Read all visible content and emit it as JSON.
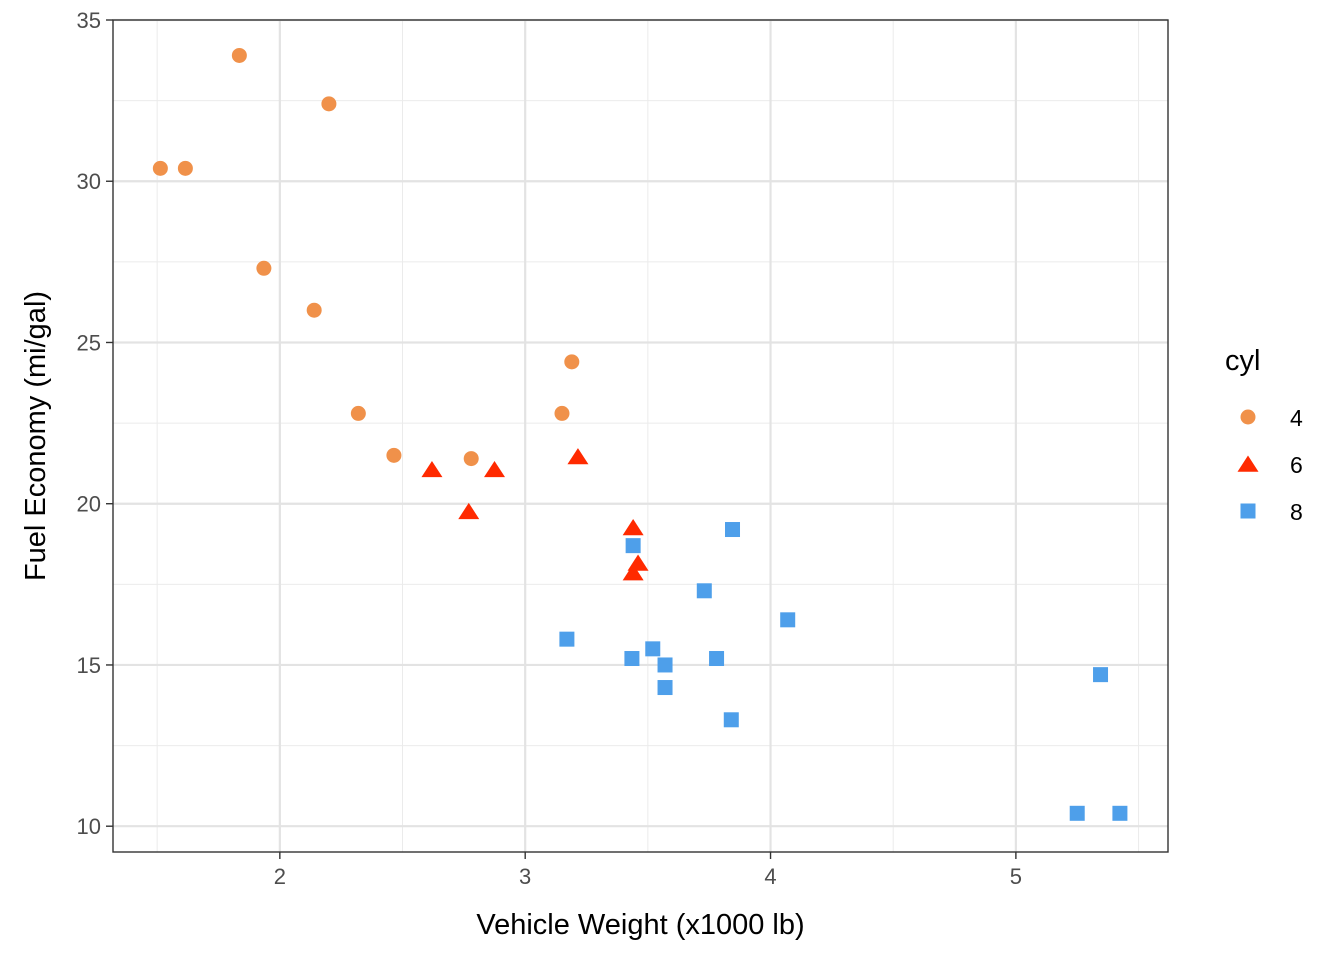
{
  "chart_data": {
    "type": "scatter",
    "xlabel": "Vehicle Weight (x1000 lb)",
    "ylabel": "Fuel Economy (mi/gal)",
    "xlim": [
      1.32,
      5.62
    ],
    "ylim": [
      9.2,
      35.0
    ],
    "x_ticks": [
      2,
      3,
      4,
      5
    ],
    "y_ticks": [
      10,
      15,
      20,
      25,
      30,
      35
    ],
    "grid": true,
    "legend": {
      "title": "cyl",
      "placement": "right",
      "entries": [
        {
          "label": "4",
          "shape": "circle",
          "color": "#F0914A"
        },
        {
          "label": "6",
          "shape": "triangle",
          "color": "#FF2A00"
        },
        {
          "label": "8",
          "shape": "square",
          "color": "#4E9FEA"
        }
      ]
    },
    "series": [
      {
        "name": "4",
        "shape": "circle",
        "color": "#F0914A",
        "points": [
          {
            "x": 1.513,
            "y": 30.4
          },
          {
            "x": 1.615,
            "y": 30.4
          },
          {
            "x": 1.835,
            "y": 33.9
          },
          {
            "x": 1.935,
            "y": 27.3
          },
          {
            "x": 2.14,
            "y": 26.0
          },
          {
            "x": 2.2,
            "y": 32.4
          },
          {
            "x": 2.32,
            "y": 22.8
          },
          {
            "x": 2.465,
            "y": 21.5
          },
          {
            "x": 2.78,
            "y": 21.4
          },
          {
            "x": 3.15,
            "y": 22.8
          },
          {
            "x": 3.19,
            "y": 24.4
          }
        ]
      },
      {
        "name": "6",
        "shape": "triangle",
        "color": "#FF2A00",
        "points": [
          {
            "x": 2.62,
            "y": 21.0
          },
          {
            "x": 2.77,
            "y": 19.7
          },
          {
            "x": 2.875,
            "y": 21.0
          },
          {
            "x": 3.215,
            "y": 21.4
          },
          {
            "x": 3.44,
            "y": 19.2
          },
          {
            "x": 3.44,
            "y": 17.8
          },
          {
            "x": 3.46,
            "y": 18.1
          }
        ]
      },
      {
        "name": "8",
        "shape": "square",
        "color": "#4E9FEA",
        "points": [
          {
            "x": 3.17,
            "y": 15.8
          },
          {
            "x": 3.435,
            "y": 15.2
          },
          {
            "x": 3.44,
            "y": 18.7
          },
          {
            "x": 3.52,
            "y": 15.5
          },
          {
            "x": 3.57,
            "y": 15.0
          },
          {
            "x": 3.57,
            "y": 14.3
          },
          {
            "x": 3.73,
            "y": 17.3
          },
          {
            "x": 3.78,
            "y": 15.2
          },
          {
            "x": 3.84,
            "y": 13.3
          },
          {
            "x": 3.845,
            "y": 19.2
          },
          {
            "x": 4.07,
            "y": 16.4
          },
          {
            "x": 5.25,
            "y": 10.4
          },
          {
            "x": 5.345,
            "y": 14.7
          },
          {
            "x": 5.424,
            "y": 10.4
          }
        ]
      }
    ]
  }
}
